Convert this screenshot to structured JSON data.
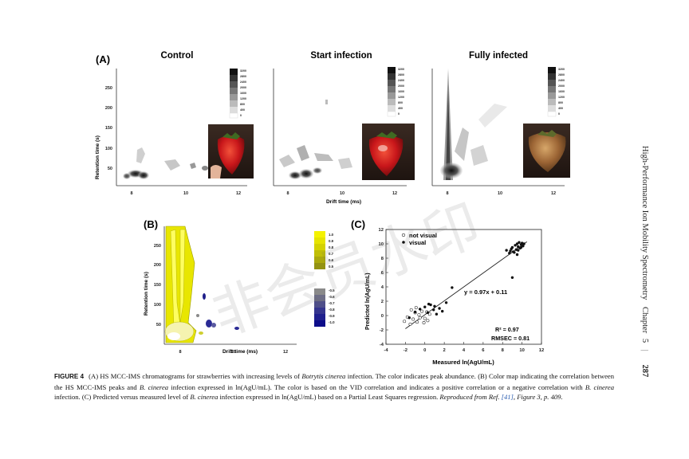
{
  "running_head": {
    "book_title": "High-Performance Ion Mobility Spectrometry",
    "chapter_word": "Chapter",
    "chapter_num": "5",
    "page": "287"
  },
  "panel_a": {
    "label": "(A)",
    "titles": [
      "Control",
      "Start infection",
      "Fully infected"
    ],
    "ylabel": "Retention time (s)",
    "xlabel": "Drift time (ms)",
    "y_ticks": [
      "250",
      "200",
      "150",
      "100",
      "50"
    ],
    "x_ticks": [
      "8",
      "10",
      "12"
    ],
    "colorbar_ticks": [
      "3200",
      "2800",
      "2400",
      "2000",
      "1600",
      "1200",
      "800",
      "400",
      "0"
    ]
  },
  "panel_b": {
    "label": "(B)",
    "ylabel": "Retention time (s)",
    "xlabel": "Drift time (ms)",
    "y_ticks": [
      "250",
      "200",
      "150",
      "100",
      "50"
    ],
    "x_ticks": [
      "8",
      "10",
      "12"
    ],
    "colorbar_ticks": [
      "1.0",
      "0.9",
      "0.8",
      "0.7",
      "0.6",
      "0.5",
      "-0.5",
      "-0.6",
      "-0.7",
      "-0.8",
      "-0.9",
      "-1.0"
    ],
    "colorbar_colors": [
      "#f4f200",
      "#e6e400",
      "#d4d200",
      "#c0be06",
      "#aaa80c",
      "#939212",
      "#8a8a8a",
      "#6e6e86",
      "#4f4f8a",
      "#35358e",
      "#20208e",
      "#0d0d8a"
    ]
  },
  "panel_c": {
    "label": "(C)",
    "ylabel": "Predicted ln(AgU/mL)",
    "xlabel": "Measured ln(AgU/mL)",
    "legend_not_visual": "not visual",
    "legend_visual": "visual",
    "equation": "y = 0.97x + 0.11",
    "r2": "R² = 0.97",
    "rmsec": "RMSEC = 0.81",
    "x_ticks": [
      "-4",
      "-2",
      "0",
      "2",
      "4",
      "6",
      "8",
      "10",
      "12"
    ],
    "y_ticks": [
      "12",
      "10",
      "8",
      "6",
      "4",
      "2",
      "0",
      "-2",
      "-4"
    ]
  },
  "chart_data": {
    "type": "scatter",
    "title": "",
    "xlabel": "Measured ln(AgU/mL)",
    "ylabel": "Predicted ln(AgU/mL)",
    "xlim": [
      -4,
      12
    ],
    "ylim": [
      -4,
      12
    ],
    "grid": false,
    "legend_position": "top-left",
    "fit_line": {
      "slope": 0.97,
      "intercept": 0.11,
      "x_range": [
        -2,
        10.5
      ]
    },
    "series": [
      {
        "name": "not visual",
        "marker": "open-circle",
        "x": [
          -2.1,
          -1.8,
          -1.5,
          -1.2,
          -1.0,
          -0.8,
          -0.6,
          -0.5,
          -0.3,
          -0.1,
          0.0,
          0.2,
          0.3,
          0.5,
          -1.4,
          -0.9
        ],
        "y": [
          -0.8,
          -0.2,
          -1.2,
          -0.5,
          0.4,
          -0.9,
          0.1,
          -0.3,
          0.6,
          -1.0,
          -0.4,
          0.5,
          -0.7,
          0.2,
          0.8,
          1.1
        ]
      },
      {
        "name": "visual",
        "marker": "filled-circle",
        "x": [
          -1.6,
          -1.0,
          -0.5,
          0.0,
          0.3,
          0.6,
          0.9,
          1.2,
          1.5,
          1.8,
          2.2,
          2.8,
          0.4,
          1.0,
          8.4,
          8.7,
          8.9,
          9.0,
          9.1,
          9.3,
          9.4,
          9.5,
          9.6,
          9.7,
          9.8,
          9.9,
          10.0,
          10.1,
          10.2,
          9.2,
          8.8,
          9.6,
          9.9,
          9.0,
          9.5
        ],
        "y": [
          -0.3,
          0.5,
          0.9,
          1.2,
          0.4,
          1.5,
          0.8,
          0.2,
          1.0,
          0.6,
          1.8,
          3.9,
          1.6,
          1.3,
          9.1,
          8.7,
          9.3,
          9.5,
          8.9,
          9.8,
          9.2,
          10.0,
          9.6,
          10.2,
          9.4,
          9.9,
          10.1,
          9.7,
          10.0,
          8.8,
          9.0,
          9.1,
          9.5,
          5.3,
          8.5
        ]
      }
    ]
  },
  "caption": {
    "label": "FIGURE 4",
    "p1": "(A) HS MCC-IMS chromatograms for strawberries with increasing levels of ",
    "species1": "Botrytis cinerea",
    "p2": " infection. The color indicates peak abundance. (B) Color map indicating the correlation between the HS MCC-IMS peaks and ",
    "species2": "B. cinerea",
    "p3": " infection expressed in ln(AgU/mL). The color is based on the VID correlation and indicates a positive correlation or a negative correlation with ",
    "species3": "B. cinerea",
    "p4": " infection. (C) Predicted versus measured level of ",
    "species4": "B. cinerea",
    "p5": " infection expressed in ln(AgU/mL) based on a Partial Least Squares regression. ",
    "repro": "Reproduced from Ref. ",
    "ref": "[41]",
    "repro2": ", Figure 3, p. 409."
  }
}
